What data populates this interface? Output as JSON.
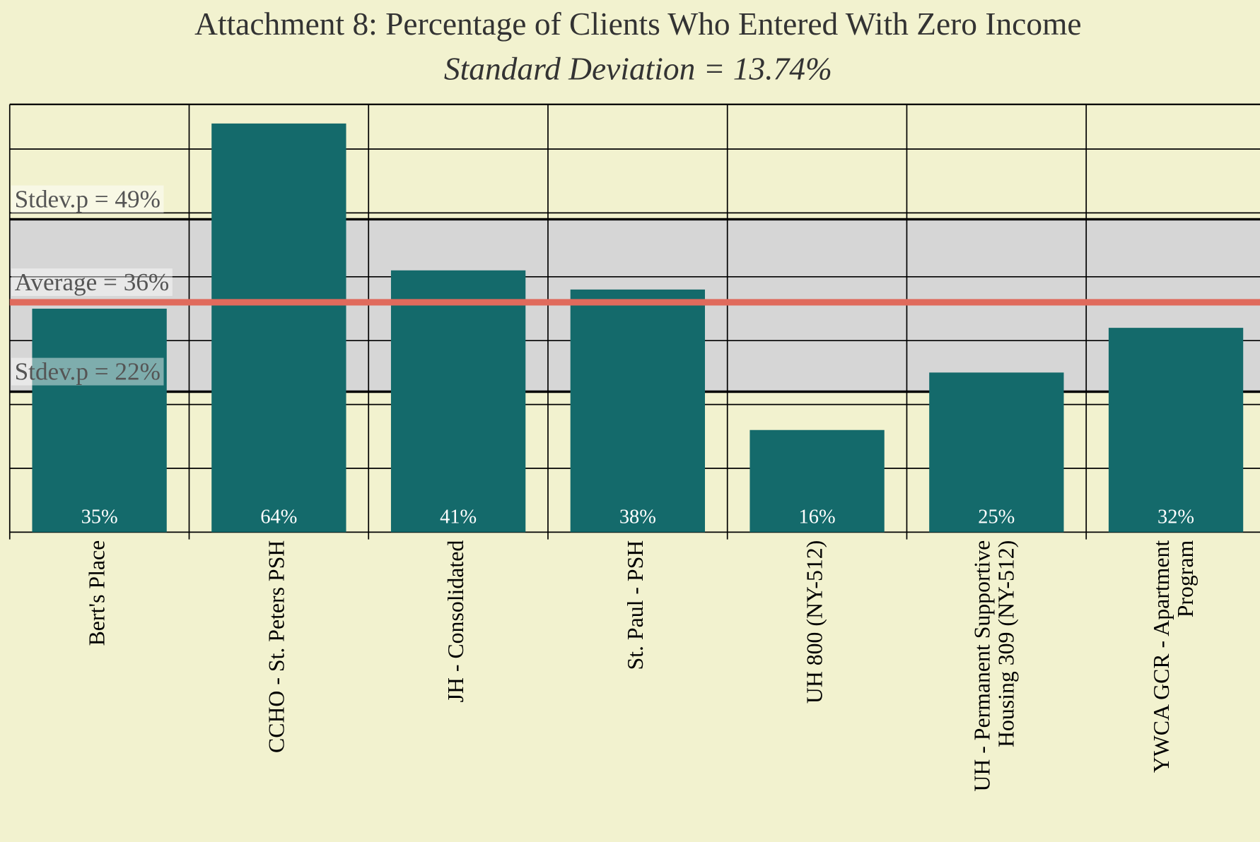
{
  "chart_data": {
    "type": "bar",
    "title": "Attachment 8: Percentage of Clients Who Entered With Zero Income",
    "subtitle": "Standard Deviation = 13.74%",
    "categories": [
      "Bert's Place",
      "CCHO - St. Peters PSH",
      "JH - Consolidated",
      "St. Paul - PSH",
      "UH 800 (NY-512)",
      "UH - Permanent Supportive\nHousing 309 (NY-512)",
      "YWCA GCR - Apartment\nProgram"
    ],
    "values": [
      35,
      64,
      41,
      38,
      16,
      25,
      32
    ],
    "value_labels": [
      "35%",
      "64%",
      "41%",
      "38%",
      "16%",
      "25%",
      "32%"
    ],
    "color": "#146a6b",
    "ylim": [
      0,
      67
    ],
    "yticks": [
      0,
      10,
      20,
      30,
      40,
      50,
      60
    ],
    "grid": true,
    "annotations": [
      {
        "value": 49,
        "label": "Stdev.p = 49%"
      },
      {
        "value": 36,
        "label": "Average = 36%"
      },
      {
        "value": 22,
        "label": "Stdev.p = 22%"
      }
    ],
    "band_color": "#d6d6d6",
    "average_color": "#e06a5c"
  }
}
